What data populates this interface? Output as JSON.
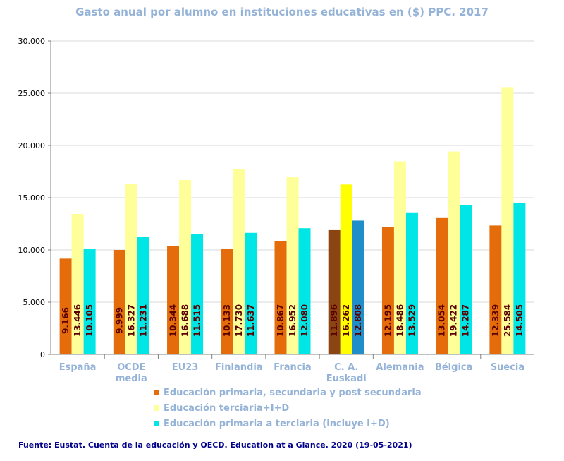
{
  "chart_data": {
    "type": "bar",
    "title": "Gasto anual por alumno en instituciones educativas en ($) PPC. 2017",
    "categories": [
      "España",
      "OCDE media",
      "EU23",
      "Finlandia",
      "Francia",
      "C. A. Euskadi",
      "Alemania",
      "Bélgica",
      "Suecia"
    ],
    "category_lines": [
      [
        "España"
      ],
      [
        "OCDE",
        "media"
      ],
      [
        "EU23"
      ],
      [
        "Finlandia"
      ],
      [
        "Francia"
      ],
      [
        "C. A.",
        "Euskadi"
      ],
      [
        "Alemania"
      ],
      [
        "Bélgica"
      ],
      [
        "Suecia"
      ]
    ],
    "series": [
      {
        "name": "Educación primaria, secundaria y post secundaria",
        "color": "#e46c0a",
        "highlight_color": "#8b4513",
        "values": [
          9166,
          9999,
          10344,
          10133,
          10867,
          11896,
          12195,
          13054,
          12339
        ],
        "labels": [
          "9.166",
          "9.999",
          "10.344",
          "10.133",
          "10.867",
          "11.896",
          "12.195",
          "13.054",
          "12.339"
        ]
      },
      {
        "name": "Educación terciaria+I+D",
        "color": "#ffff99",
        "highlight_color": "#ffff00",
        "values": [
          13446,
          16327,
          16688,
          17730,
          16952,
          16262,
          18486,
          19422,
          25584
        ],
        "labels": [
          "13.446",
          "16.327",
          "16.688",
          "17.730",
          "16.952",
          "16.262",
          "18.486",
          "19.422",
          "25.584"
        ]
      },
      {
        "name": "Educación primaria a terciaria (incluye I+D)",
        "color": "#00e5e5",
        "highlight_color": "#1f8ec9",
        "values": [
          10105,
          11231,
          11515,
          11637,
          12080,
          12808,
          13529,
          14287,
          14505
        ],
        "labels": [
          "10.105",
          "11.231",
          "11.515",
          "11.637",
          "12.080",
          "12.808",
          "13.529",
          "14.287",
          "14.505"
        ]
      }
    ],
    "highlight_category": "C. A. Euskadi",
    "ylim": [
      0,
      30000
    ],
    "yticks": [
      0,
      5000,
      10000,
      15000,
      20000,
      25000,
      30000
    ],
    "ytick_labels": [
      "0",
      "5.000",
      "10.000",
      "15.000",
      "20.000",
      "25.000",
      "30.000"
    ],
    "grid": true,
    "legend_position": "bottom",
    "label_color": "#5a0000"
  },
  "source": "Fuente: Eustat. Cuenta de la educación y OECD. Education at a Glance. 2020 (19-05-2021)"
}
